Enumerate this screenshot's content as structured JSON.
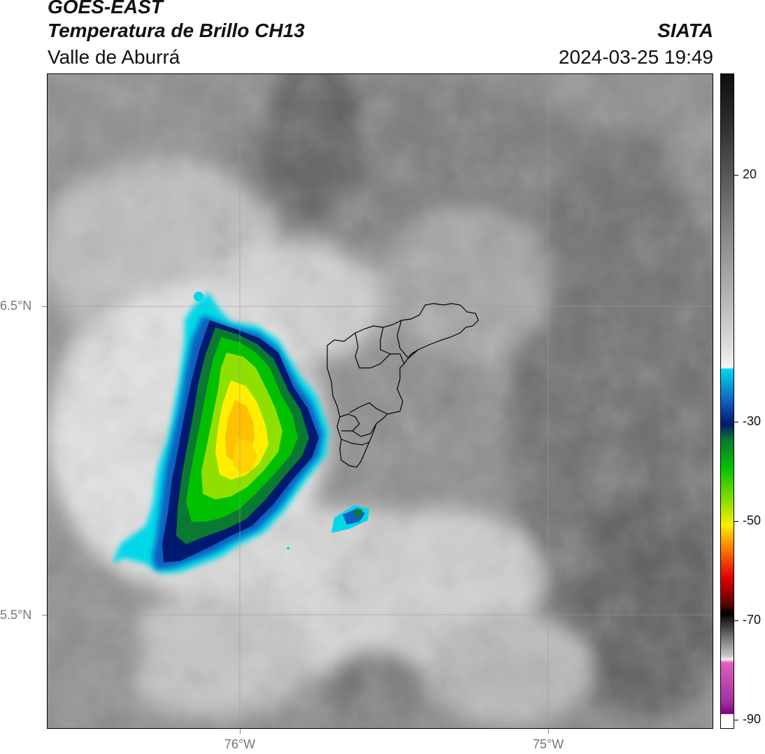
{
  "header": {
    "satellite": "GOES-EAST",
    "product": "Temperatura de Brillo CH13",
    "region": "Valle de Aburrá",
    "organization": "SIATA",
    "timestamp": "2024-03-25 19:49"
  },
  "map": {
    "lat_labels": [
      "6.5°N",
      "5.5°N"
    ],
    "lon_labels": [
      "76°W",
      "75°W"
    ],
    "gridlines": true,
    "boundary": "Valle de Aburrá municipalities outline"
  },
  "colorbar": {
    "tick_labels": [
      "20",
      "-30",
      "-50",
      "-70",
      "-90"
    ],
    "colors": {
      "top_dark": "#111111",
      "gray_mid": "#8a8a8a",
      "white": "#f2f2f2",
      "cyan": "#00d8e8",
      "blue": "#1060c0",
      "navy": "#001a70",
      "green": "#00c000",
      "yellow": "#ffee00",
      "orange": "#ff8c00",
      "red": "#e00000",
      "darkred": "#600000",
      "black": "#000000",
      "pink": "#e060c0",
      "purple": "#800080"
    }
  }
}
